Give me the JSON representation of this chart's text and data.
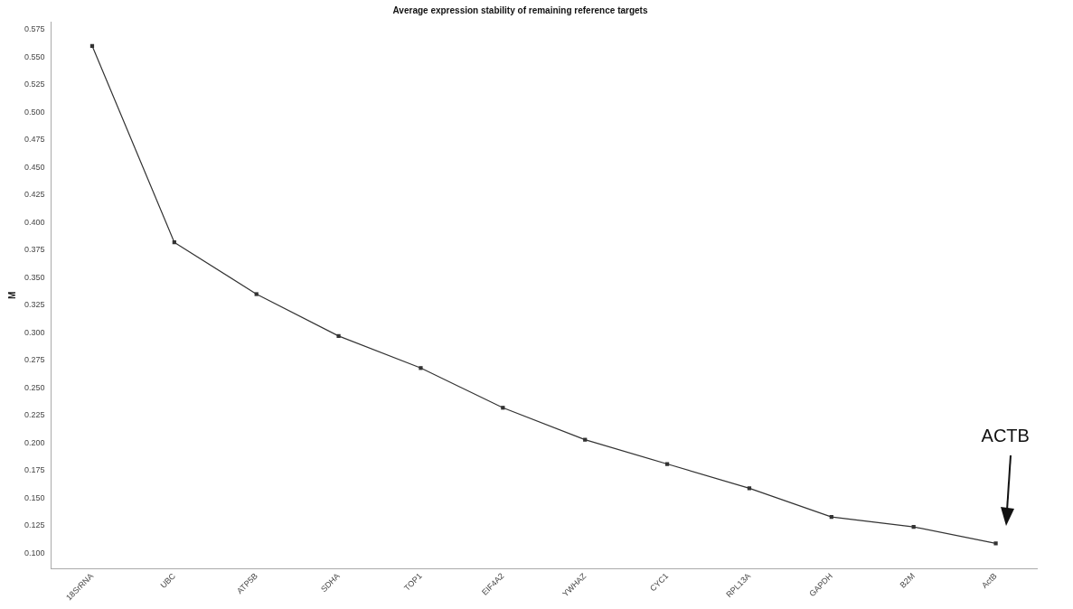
{
  "chart_data": {
    "type": "line",
    "title": "Average expression stability of remaining reference targets",
    "ylabel": "M",
    "categories": [
      "18SrRNA",
      "UBC",
      "ATP5B",
      "SDHA",
      "TOP1",
      "EIF4A2",
      "YWHAZ",
      "CYC1",
      "RPL13A",
      "GAPDH",
      "B2M",
      "ActB"
    ],
    "series": [
      {
        "color": "#333333",
        "values": [
          0.56,
          0.382,
          0.335,
          0.297,
          0.268,
          0.232,
          0.203,
          0.181,
          0.159,
          0.133,
          0.124,
          0.109
        ]
      }
    ],
    "ylim": [
      0.086,
      0.582
    ],
    "yticks": [
      {
        "value": 0.1,
        "label": "0.100"
      },
      {
        "value": 0.125,
        "label": "0.125"
      },
      {
        "value": 0.15,
        "label": "0.150"
      },
      {
        "value": 0.175,
        "label": "0.175"
      },
      {
        "value": 0.2,
        "label": "0.200"
      },
      {
        "value": 0.225,
        "label": "0.225"
      },
      {
        "value": 0.25,
        "label": "0.250"
      },
      {
        "value": 0.275,
        "label": "0.275"
      },
      {
        "value": 0.3,
        "label": "0.300"
      },
      {
        "value": 0.325,
        "label": "0.325"
      },
      {
        "value": 0.35,
        "label": "0.350"
      },
      {
        "value": 0.375,
        "label": "0.375"
      },
      {
        "value": 0.4,
        "label": "0.400"
      },
      {
        "value": 0.425,
        "label": "0.425"
      },
      {
        "value": 0.45,
        "label": "0.450"
      },
      {
        "value": 0.475,
        "label": "0.475"
      },
      {
        "value": 0.5,
        "label": "0.500"
      },
      {
        "value": 0.525,
        "label": "0.525"
      },
      {
        "value": 0.55,
        "label": "0.550"
      },
      {
        "value": 0.575,
        "label": "0.575"
      }
    ],
    "annotations": [
      "ACTB"
    ],
    "grid": false,
    "legend": false,
    "marker": "square",
    "line_style": "solid"
  }
}
